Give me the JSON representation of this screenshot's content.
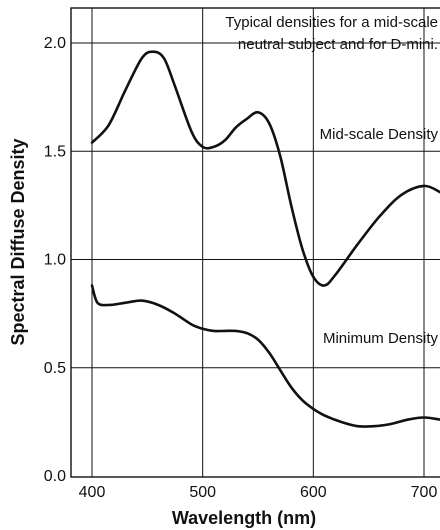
{
  "chart_data": {
    "type": "line",
    "title_lines": [
      "Typical densities for a mid-scale",
      "neutral subject and for D-mini."
    ],
    "xlabel": "Wavelength (nm)",
    "ylabel": "Spectral Diffuse Density",
    "xlim": [
      400,
      700
    ],
    "ylim": [
      0.0,
      2.0
    ],
    "xticks": [
      400,
      500,
      600,
      700
    ],
    "xtick_labels": [
      "400",
      "500",
      "600",
      "700"
    ],
    "yticks": [
      0.0,
      0.5,
      1.0,
      1.5,
      2.0
    ],
    "ytick_labels": [
      "0.0",
      "0.5",
      "1.0",
      "1.5",
      "2.0"
    ],
    "grid": true,
    "series": [
      {
        "name": "Mid-scale Density",
        "x": [
          400,
          415,
          430,
          445,
          455,
          465,
          475,
          490,
          500,
          510,
          520,
          530,
          540,
          550,
          560,
          570,
          580,
          590,
          600,
          610,
          620,
          640,
          660,
          680,
          700,
          715
        ],
        "y": [
          1.54,
          1.62,
          1.78,
          1.93,
          1.96,
          1.93,
          1.8,
          1.59,
          1.52,
          1.52,
          1.55,
          1.61,
          1.65,
          1.68,
          1.63,
          1.48,
          1.25,
          1.05,
          0.92,
          0.88,
          0.93,
          1.07,
          1.2,
          1.3,
          1.34,
          1.31
        ]
      },
      {
        "name": "Minimum Density",
        "x": [
          400,
          405,
          415,
          430,
          445,
          460,
          475,
          490,
          500,
          510,
          520,
          530,
          540,
          550,
          560,
          570,
          580,
          590,
          600,
          610,
          625,
          640,
          655,
          670,
          685,
          700,
          715
        ],
        "y": [
          0.88,
          0.8,
          0.79,
          0.8,
          0.81,
          0.79,
          0.75,
          0.7,
          0.68,
          0.67,
          0.67,
          0.67,
          0.66,
          0.63,
          0.57,
          0.49,
          0.41,
          0.35,
          0.31,
          0.28,
          0.25,
          0.23,
          0.23,
          0.24,
          0.26,
          0.27,
          0.26
        ]
      }
    ],
    "annotations": [
      "Mid-scale Density",
      "Minimum Density"
    ]
  }
}
